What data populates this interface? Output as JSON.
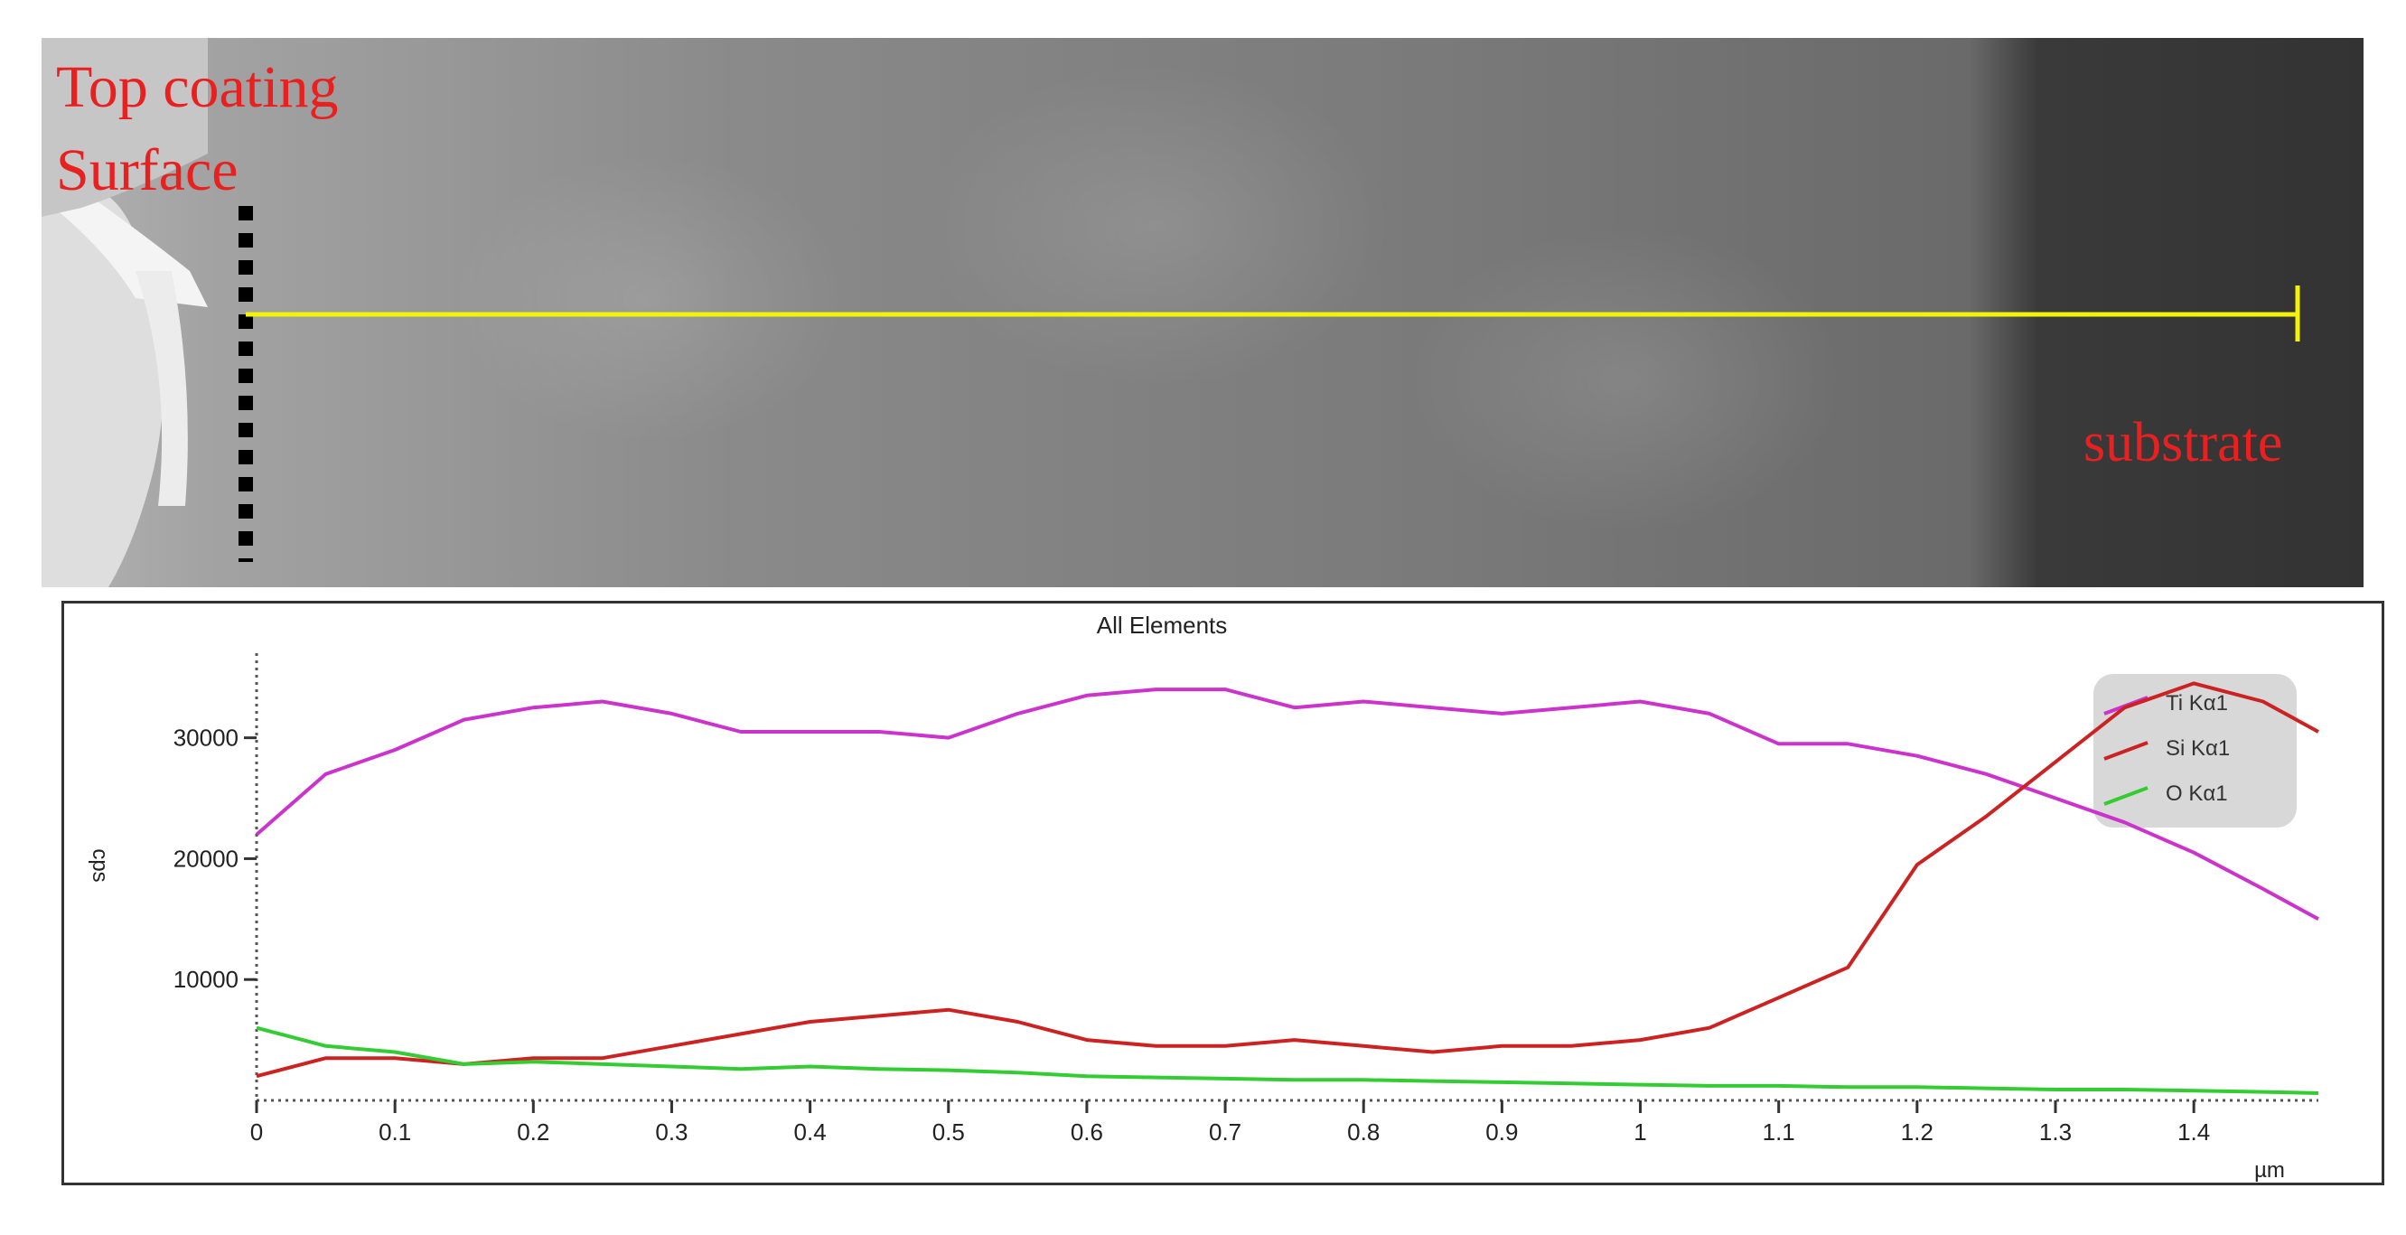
{
  "image": {
    "labels": {
      "top_coating_line1": "Top coating",
      "top_coating_line2": "Surface",
      "substrate": "substrate"
    },
    "label_color": "#e82020",
    "scan_line_color": "#f2f20a",
    "surface_marker_color": "#000000"
  },
  "chart_data": {
    "type": "line",
    "title": "All Elements",
    "xlabel": "µm",
    "ylabel": "cps",
    "xlim": [
      0,
      1.49
    ],
    "ylim": [
      0,
      37000
    ],
    "x_ticks": [
      0,
      0.1,
      0.2,
      0.3,
      0.4,
      0.5,
      0.6,
      0.7,
      0.8,
      0.9,
      1,
      1.1,
      1.2,
      1.3,
      1.4
    ],
    "x_tick_labels": [
      "0",
      "0.1",
      "0.2",
      "0.3",
      "0.4",
      "0.5",
      "0.6",
      "0.7",
      "0.8",
      "0.9",
      "1",
      "1.1",
      "1.2",
      "1.3",
      "1.4"
    ],
    "y_ticks": [
      10000,
      20000,
      30000
    ],
    "y_tick_labels": [
      "10000",
      "20000",
      "30000"
    ],
    "grid": false,
    "legend_position": "top-right",
    "x": [
      0,
      0.05,
      0.1,
      0.15,
      0.2,
      0.25,
      0.3,
      0.35,
      0.4,
      0.45,
      0.5,
      0.55,
      0.6,
      0.65,
      0.7,
      0.75,
      0.8,
      0.85,
      0.9,
      0.95,
      1,
      1.05,
      1.1,
      1.15,
      1.2,
      1.25,
      1.3,
      1.35,
      1.4,
      1.45,
      1.49
    ],
    "series": [
      {
        "name": "Ti Kα1",
        "color": "#cc33cc",
        "values": [
          22000,
          27000,
          29000,
          31500,
          32500,
          33000,
          32000,
          30500,
          30500,
          30500,
          30000,
          32000,
          33500,
          34000,
          34000,
          32500,
          33000,
          32500,
          32000,
          32500,
          33000,
          32000,
          29500,
          29500,
          28500,
          27000,
          25000,
          23000,
          20500,
          17500,
          15000
        ]
      },
      {
        "name": "Si Kα1",
        "color": "#cc2222",
        "values": [
          2000,
          3500,
          3500,
          3000,
          3500,
          3500,
          4500,
          5500,
          6500,
          7000,
          7500,
          6500,
          5000,
          4500,
          4500,
          5000,
          4500,
          4000,
          4500,
          4500,
          5000,
          6000,
          8500,
          11000,
          19500,
          23500,
          28000,
          32500,
          34500,
          33000,
          30500
        ]
      },
      {
        "name": "O Kα1",
        "color": "#33cc33",
        "values": [
          6000,
          4500,
          4000,
          3000,
          3200,
          3000,
          2800,
          2600,
          2800,
          2600,
          2500,
          2300,
          2000,
          1900,
          1800,
          1700,
          1700,
          1600,
          1500,
          1400,
          1300,
          1200,
          1200,
          1100,
          1100,
          1000,
          900,
          900,
          800,
          700,
          600
        ]
      }
    ]
  }
}
